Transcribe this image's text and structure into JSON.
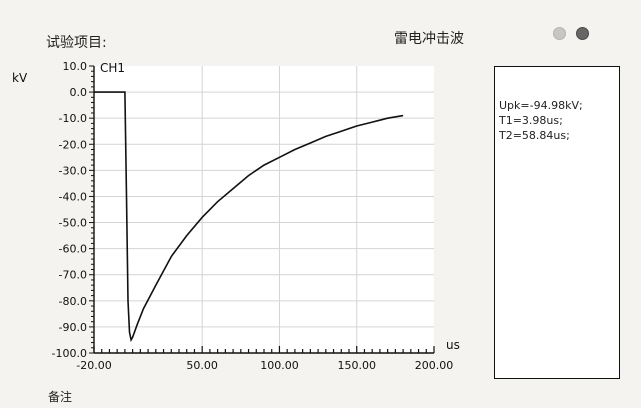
{
  "header": {
    "test_item_label": "试验项目:",
    "wave_type": "雷电冲击波"
  },
  "status": {
    "indicator_light_color": "#c6c6c6",
    "indicator_dark_color": "#666666"
  },
  "chart_data": {
    "type": "line",
    "channel_label": "CH1",
    "ylabel": "kV",
    "xlabel": "us",
    "x_ticks": [
      "-20.00",
      "50.00",
      "100.00",
      "150.00",
      "200.00"
    ],
    "x_tick_values": [
      -20,
      50,
      100,
      150,
      200
    ],
    "y_ticks": [
      "10.0",
      "0.0",
      "-10.0",
      "-20.0",
      "-30.0",
      "-40.0",
      "-50.0",
      "-60.0",
      "-70.0",
      "-80.0",
      "-90.0",
      "-100.0"
    ],
    "y_tick_values": [
      10,
      0,
      -10,
      -20,
      -30,
      -40,
      -50,
      -60,
      -70,
      -80,
      -90,
      -100
    ],
    "xlim": [
      -20,
      200
    ],
    "ylim": [
      -100,
      10
    ],
    "grid": true,
    "series": [
      {
        "color": "#111111",
        "x": [
          -20,
          -15,
          -10,
          -5,
          0,
          1,
          2,
          3,
          4,
          5,
          8,
          12,
          20,
          30,
          40,
          50,
          60,
          70,
          80,
          90,
          100,
          110,
          120,
          130,
          140,
          150,
          160,
          170,
          180
        ],
        "y": [
          0,
          0,
          0,
          0,
          0,
          -40,
          -80,
          -92,
          -94.98,
          -94,
          -89,
          -83,
          -74,
          -63,
          -55,
          -48,
          -42,
          -37,
          -32,
          -28,
          -25,
          -22,
          -19.5,
          -17,
          -15,
          -13,
          -11.5,
          -10,
          -9
        ]
      }
    ]
  },
  "readout": {
    "lines": [
      "Upk=-94.98kV;",
      "T1=3.98us;",
      "T2=58.84us;"
    ]
  },
  "footer": {
    "remark_label": "备注"
  }
}
